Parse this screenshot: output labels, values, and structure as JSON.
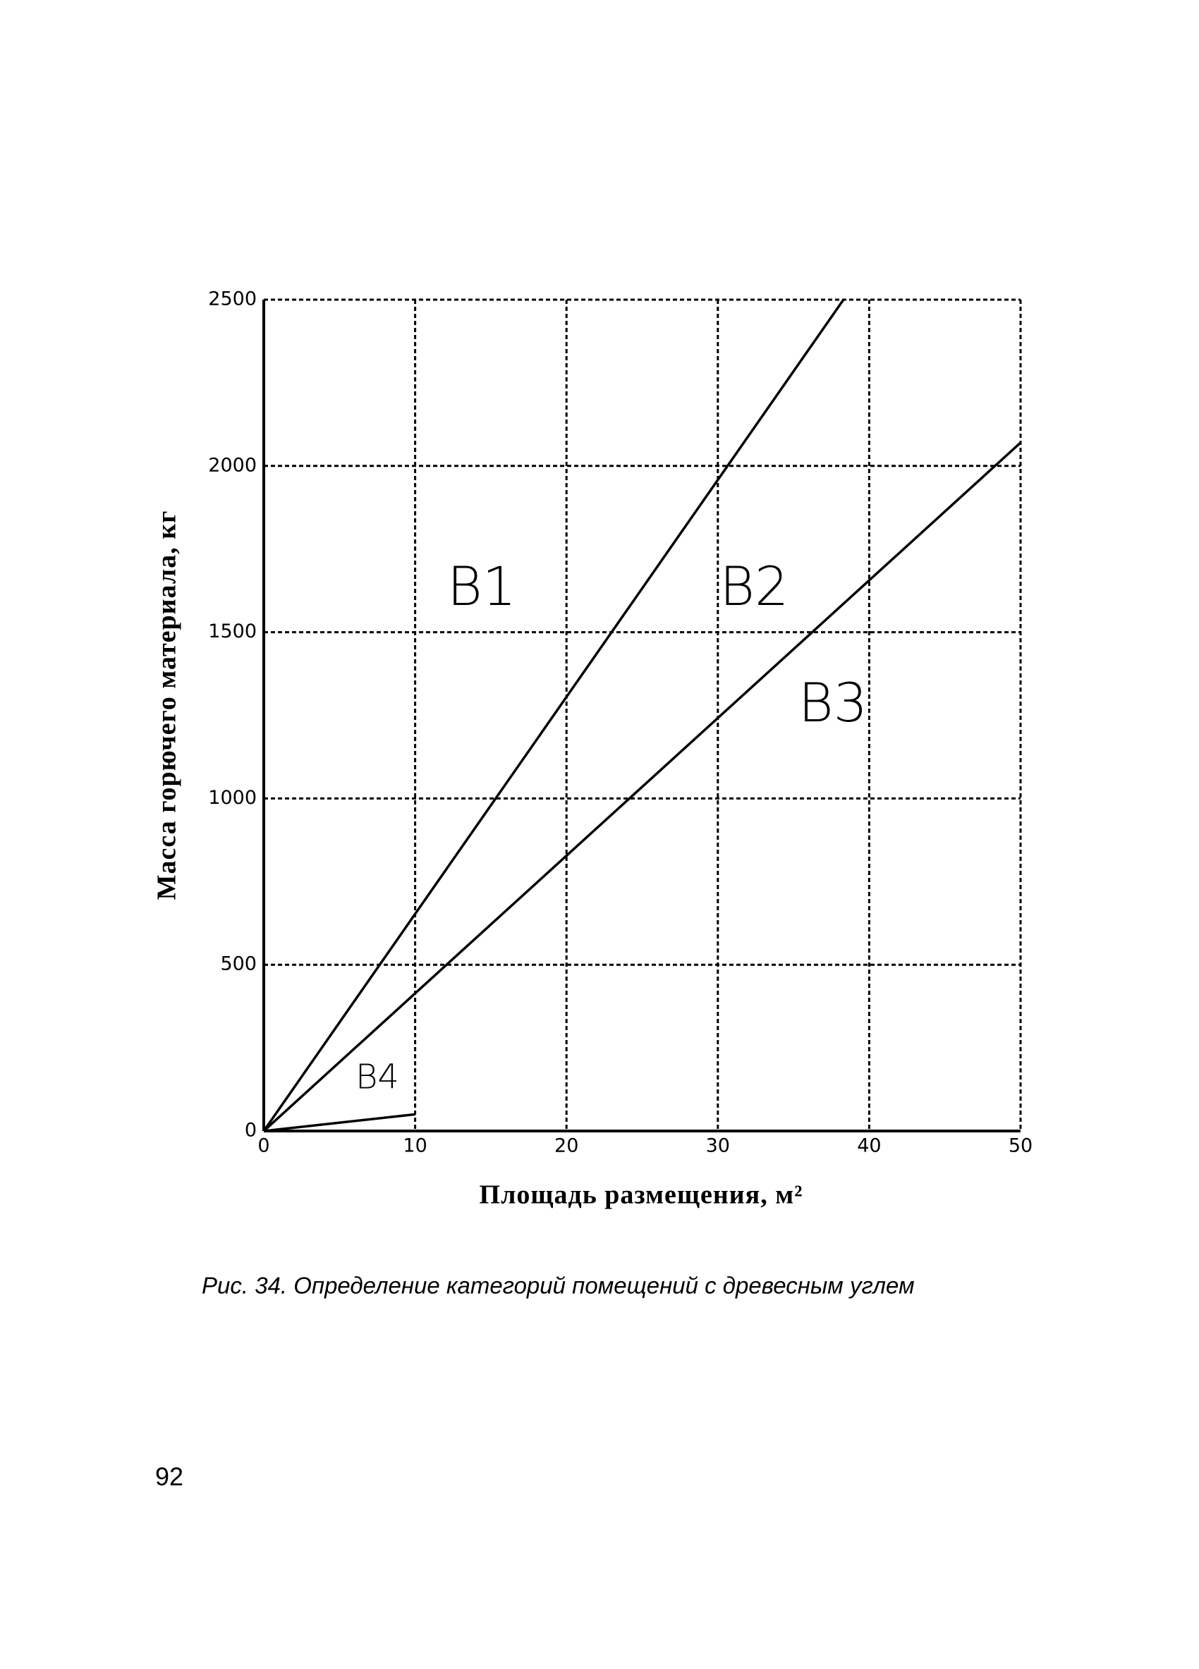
{
  "chart_data": {
    "type": "line",
    "xlabel": "Площадь размещения, м²",
    "ylabel": "Масса горючего материала, кг",
    "xlim": [
      0,
      50
    ],
    "xticks": [
      0,
      10,
      20,
      30,
      40,
      50
    ],
    "ylim": [
      0,
      2500
    ],
    "yticks": [
      0,
      500,
      1000,
      1500,
      2000,
      2500
    ],
    "grid": true,
    "series": [
      {
        "color": "#000000",
        "x": [
          0,
          38.3
        ],
        "values": [
          0,
          2500
        ]
      },
      {
        "color": "#000000",
        "x": [
          0,
          50
        ],
        "values": [
          0,
          2070
        ]
      },
      {
        "color": "#000000",
        "x": [
          0,
          10
        ],
        "values": [
          0,
          50
        ]
      }
    ],
    "annotations": [
      "B1",
      "B2",
      "B3",
      "B4"
    ]
  },
  "caption": "Рис. 34. Определение категорий помещений с древесным углем",
  "page_number": "92"
}
